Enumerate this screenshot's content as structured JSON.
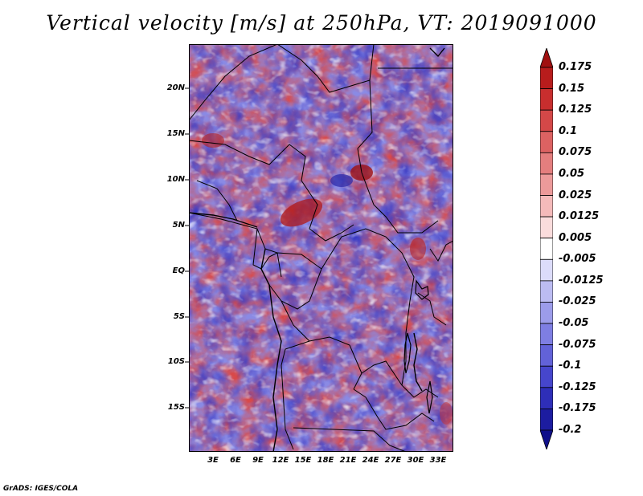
{
  "title": "Vertical velocity [m/s] at 250hPa, VT: 2019091000",
  "lat_labels": [
    "20N",
    "15N",
    "10N",
    "5N",
    "EQ",
    "5S",
    "10S",
    "15S"
  ],
  "lon_labels": [
    "3E",
    "6E",
    "9E",
    "12E",
    "15E",
    "18E",
    "21E",
    "24E",
    "27E",
    "30E",
    "33E"
  ],
  "colorbar": {
    "labels": [
      "0.175",
      "0.15",
      "0.125",
      "0.1",
      "0.075",
      "0.05",
      "0.025",
      "0.0125",
      "0.005",
      "-0.005",
      "-0.0125",
      "-0.025",
      "-0.05",
      "-0.075",
      "-0.1",
      "-0.125",
      "-0.175",
      "-0.2"
    ],
    "colors": [
      "#a01010",
      "#b81c1c",
      "#c82e2e",
      "#d44848",
      "#dc6262",
      "#e47e7e",
      "#ec9a9a",
      "#f4baba",
      "#fadcdc",
      "#ffffff",
      "#dcdcfa",
      "#bcbcf2",
      "#9c9cea",
      "#7e7ee2",
      "#6262d8",
      "#4646cc",
      "#2e2eb8",
      "#1c1ca0",
      "#10108a"
    ]
  },
  "footer": "GrADS: IGES/COLA"
}
